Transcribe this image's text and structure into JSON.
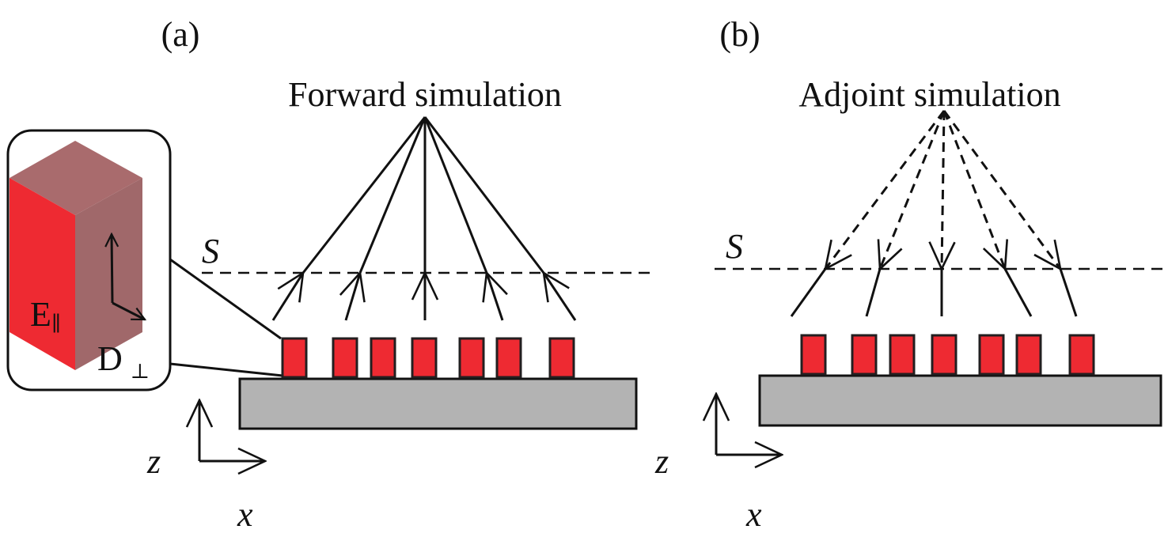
{
  "panels": [
    {
      "label": "(a)",
      "title": "Forward simulation",
      "surface_label": "S",
      "axis_labels": {
        "vertical": "z",
        "horizontal": "x"
      },
      "ray_style": "solid, arrows pointing up toward focal point"
    },
    {
      "label": "(b)",
      "title": "Adjoint simulation",
      "surface_label": "S",
      "axis_labels": {
        "vertical": "z",
        "horizontal": "x"
      },
      "ray_style": "dashed, arrows pointing down from focal point"
    }
  ],
  "inset": {
    "field_parallel": "E",
    "field_parallel_sub": "∥",
    "field_perp": "D",
    "field_perp_sub": "⊥"
  },
  "colors": {
    "pillar": "#ee2a32",
    "substrate": "#b3b3b3",
    "cube_front": "#ee2a32",
    "cube_side": "#a0686a",
    "cube_top": "#a96b6d",
    "line": "#111111"
  },
  "pillar_count": 7,
  "ray_count": 5
}
